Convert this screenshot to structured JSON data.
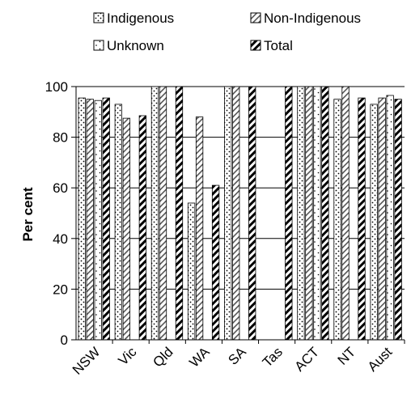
{
  "chart_data": {
    "type": "bar",
    "title": "",
    "xlabel": "",
    "ylabel": "Per cent",
    "ylim": [
      0,
      100
    ],
    "yticks": [
      0,
      20,
      40,
      60,
      80,
      100
    ],
    "grid": true,
    "legend_position": "top",
    "categories": [
      "NSW",
      "Vic",
      "Qld",
      "WA",
      "SA",
      "Tas",
      "ACT",
      "NT",
      "Aust"
    ],
    "series": [
      {
        "name": "Indigenous",
        "pattern": "dots",
        "values": [
          95.5,
          93,
          100,
          54,
          100,
          null,
          100,
          95,
          93
        ]
      },
      {
        "name": "Non-Indigenous",
        "pattern": "diagonal",
        "values": [
          95,
          87.5,
          100,
          88,
          100,
          null,
          100,
          100,
          95.5
        ]
      },
      {
        "name": "Unknown",
        "pattern": "sparse-dots",
        "values": [
          94.5,
          null,
          null,
          null,
          null,
          null,
          100,
          null,
          96.5
        ]
      },
      {
        "name": "Total",
        "pattern": "bold-diagonal",
        "values": [
          95.5,
          88.5,
          100,
          61,
          100,
          100,
          100,
          95.5,
          95
        ]
      }
    ],
    "colors": {
      "bar_fill": "#ffffff",
      "stroke": "#000000",
      "grid": "#000000"
    }
  }
}
